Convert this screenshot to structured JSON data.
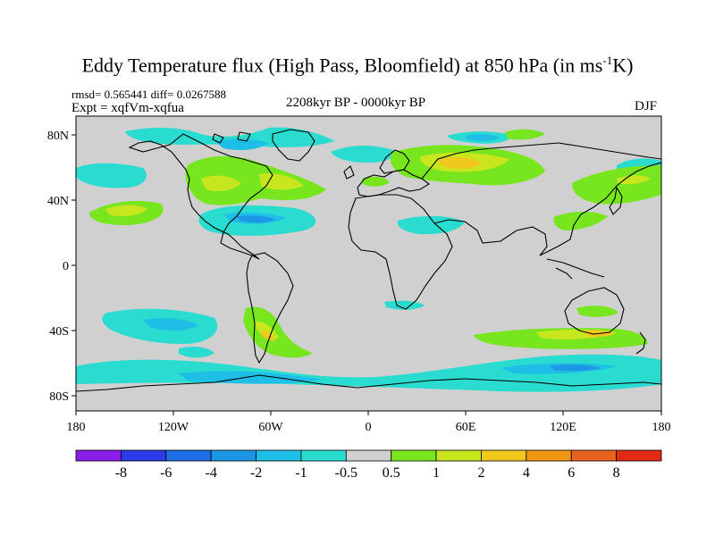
{
  "title": {
    "main": "Eddy Temperature flux (High Pass, Bloomfield) at 850 hPa (in ms",
    "superscript": "-1",
    "suffix": "K)"
  },
  "subtitle": {
    "stats": "rmsd= 0.565441 diff= 0.0267588",
    "experiment": "Expt = xqfVm-xqfua",
    "period": "2208kyr BP - 0000kyr BP",
    "season": "DJF"
  },
  "map": {
    "projection": "cylindrical equidistant",
    "lon_range": [
      -180,
      180
    ],
    "lat_range": [
      -90,
      90
    ],
    "lat_ticks": [
      {
        "lat": 80,
        "label": "80N"
      },
      {
        "lat": 40,
        "label": "40N"
      },
      {
        "lat": 0,
        "label": "0"
      },
      {
        "lat": -40,
        "label": "40S"
      },
      {
        "lat": -80,
        "label": "80S"
      }
    ],
    "lon_ticks": [
      {
        "lon": -180,
        "label": "180"
      },
      {
        "lon": -120,
        "label": "120W"
      },
      {
        "lon": -60,
        "label": "60W"
      },
      {
        "lon": 0,
        "label": "0"
      },
      {
        "lon": 60,
        "label": "60E"
      },
      {
        "lon": 120,
        "label": "120E"
      },
      {
        "lon": 180,
        "label": "180"
      }
    ],
    "background_color": "#d0d0d0"
  },
  "colorbar": {
    "labels": [
      "-8",
      "-6",
      "-4",
      "-2",
      "-1",
      "-0.5",
      "0.5",
      "1",
      "2",
      "4",
      "6",
      "8"
    ],
    "colors": [
      "#8a1ee8",
      "#2a3ce8",
      "#1e6ee6",
      "#1e96e6",
      "#1ebee6",
      "#2adcd0",
      "#d0d0d0",
      "#78e61e",
      "#c8e61e",
      "#f0c81e",
      "#f09614",
      "#e8641e",
      "#e02a14"
    ]
  }
}
